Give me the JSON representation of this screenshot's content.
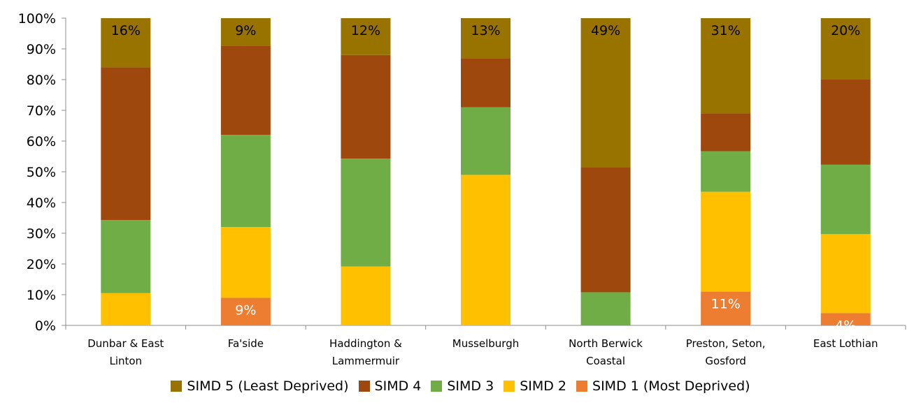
{
  "chart_data": {
    "type": "bar",
    "stacked": true,
    "percent": true,
    "categories": [
      [
        "Dunbar & East",
        "Linton"
      ],
      [
        "Fa'side"
      ],
      [
        "Haddington &",
        "Lammermuir"
      ],
      [
        "Musselburgh"
      ],
      [
        "North Berwick",
        "Coastal"
      ],
      [
        "Preston, Seton,",
        "Gosford"
      ],
      [
        "East Lothian"
      ]
    ],
    "ylim": [
      0,
      100
    ],
    "yticks": [
      "0%",
      "10%",
      "20%",
      "30%",
      "40%",
      "50%",
      "60%",
      "70%",
      "80%",
      "90%",
      "100%"
    ],
    "series": [
      {
        "name": "SIMD 1 (Most Deprived)",
        "color": "#ED7D31",
        "values": [
          0,
          9,
          0,
          0,
          0,
          11,
          4
        ],
        "labels": [
          "",
          "9%",
          "",
          "",
          "",
          "11%",
          "4%"
        ],
        "label_color": "#ffffff"
      },
      {
        "name": "SIMD 2",
        "color": "#FFC000",
        "values": [
          10.5,
          23,
          19.2,
          49,
          0,
          32.5,
          25.7
        ],
        "labels": [
          "",
          "",
          "",
          "",
          "",
          "",
          ""
        ],
        "label_color": "#000000"
      },
      {
        "name": "SIMD 3",
        "color": "#70AD47",
        "values": [
          23.8,
          30,
          35.1,
          22,
          10.8,
          13.2,
          22.6
        ],
        "labels": [
          "",
          "",
          "",
          "",
          "",
          "",
          ""
        ],
        "label_color": "#000000"
      },
      {
        "name": "SIMD 4",
        "color": "#9E480E",
        "values": [
          49.7,
          29,
          33.7,
          16,
          40.7,
          12.3,
          27.7
        ],
        "labels": [
          "",
          "",
          "",
          "",
          "",
          "",
          ""
        ],
        "label_color": "#000000"
      },
      {
        "name": "SIMD 5 (Least Deprived)",
        "color": "#997300",
        "values": [
          16,
          9,
          12,
          13,
          48.5,
          31,
          20
        ],
        "labels": [
          "16%",
          "9%",
          "12%",
          "13%",
          "49%",
          "31%",
          "20%"
        ],
        "label_color": "#000000"
      }
    ],
    "legend_order": [
      4,
      3,
      2,
      1,
      0
    ],
    "grid": false,
    "legend_position": "bottom"
  }
}
